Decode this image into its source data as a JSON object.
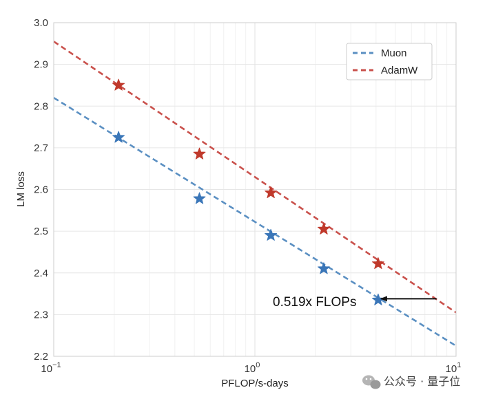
{
  "chart_data": {
    "type": "line",
    "xlabel": "PFLOP/s-days",
    "ylabel": "LM loss",
    "xscale": "log",
    "xlim": [
      0.1,
      10
    ],
    "ylim": [
      2.2,
      3.0
    ],
    "yticks": [
      "2.2",
      "2.3",
      "2.4",
      "2.5",
      "2.6",
      "2.7",
      "2.8",
      "2.9",
      "3.0"
    ],
    "xticks": [
      {
        "base": "10",
        "exp": "−1"
      },
      {
        "base": "10",
        "exp": "0"
      },
      {
        "base": "10",
        "exp": "1"
      }
    ],
    "grid": true,
    "legend_position": "top-right",
    "series": [
      {
        "name": "Muon",
        "color": "#5a8fc2",
        "marker_color": "#3a76b8",
        "fit_line": [
          [
            0.1,
            2.82
          ],
          [
            10,
            2.225
          ]
        ],
        "points": [
          [
            0.21,
            2.725
          ],
          [
            0.53,
            2.578
          ],
          [
            1.2,
            2.49
          ],
          [
            2.2,
            2.41
          ],
          [
            4.1,
            2.335
          ]
        ]
      },
      {
        "name": "AdamW",
        "color": "#c9504b",
        "marker_color": "#c0392b",
        "fit_line": [
          [
            0.1,
            2.955
          ],
          [
            10,
            2.305
          ]
        ],
        "points": [
          [
            0.21,
            2.85
          ],
          [
            0.53,
            2.685
          ],
          [
            1.2,
            2.592
          ],
          [
            2.2,
            2.505
          ],
          [
            4.1,
            2.422
          ]
        ]
      }
    ],
    "annotation": {
      "text": "0.519x FLOPs",
      "arrow_from": [
        8.0,
        2.338
      ],
      "arrow_to": [
        4.1,
        2.338
      ]
    }
  },
  "watermark": {
    "text": "公众号 · 量子位",
    "icon": "wechat-icon"
  }
}
